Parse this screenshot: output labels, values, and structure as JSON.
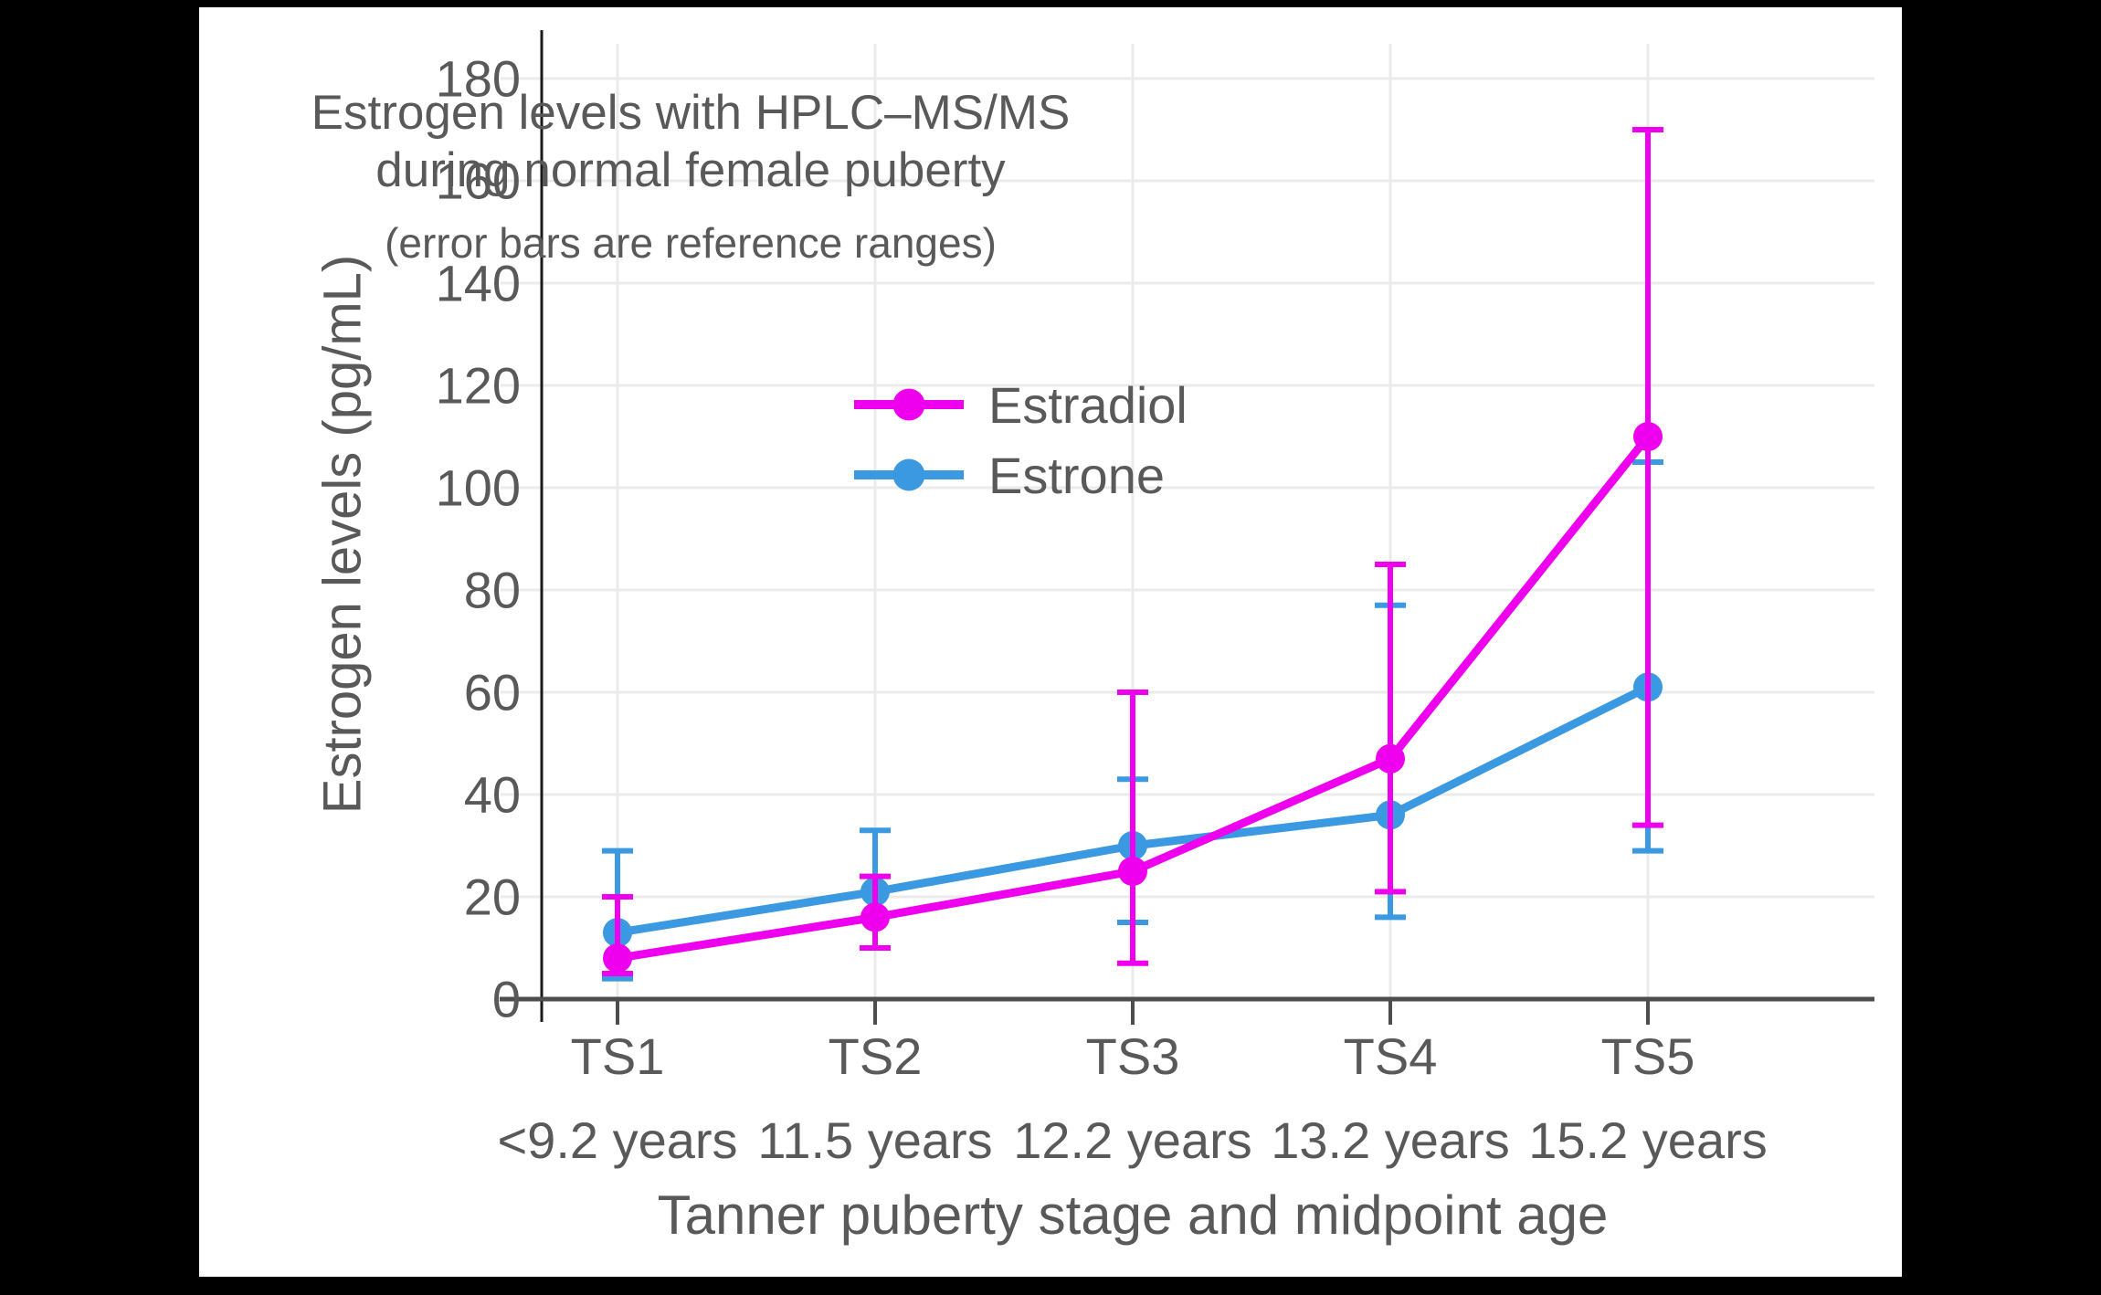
{
  "chart": {
    "title_line1": "Estrogen levels with HPLC–MS/MS",
    "title_line2": "during normal female puberty",
    "subtitle": "(error bars are reference ranges)",
    "y_axis_title": "Estrogen levels (pg/mL)",
    "x_axis_title": "Tanner puberty stage and midpoint age"
  },
  "chart_data": {
    "type": "line",
    "title": "Estrogen levels with HPLC–MS/MS during normal female puberty",
    "subtitle": "(error bars are reference ranges)",
    "xlabel": "Tanner puberty stage and midpoint age",
    "ylabel": "Estrogen levels (pg/mL)",
    "ylim": [
      0,
      180
    ],
    "yticks": [
      0,
      20,
      40,
      60,
      80,
      100,
      120,
      140,
      160,
      180
    ],
    "grid": true,
    "legend_position": "inside upper-left",
    "error_bars_meaning": "reference ranges",
    "categories": [
      "TS1",
      "TS2",
      "TS3",
      "TS4",
      "TS5"
    ],
    "category_sublabels": [
      "<9.2 years",
      "11.5 years",
      "12.2 years",
      "13.2 years",
      "15.2 years"
    ],
    "series": [
      {
        "name": "Estradiol",
        "color": "#EE00EE",
        "values": [
          8,
          16,
          25,
          47,
          110
        ],
        "error_low": [
          5,
          10,
          7,
          21,
          34
        ],
        "error_high": [
          20,
          24,
          60,
          85,
          170
        ]
      },
      {
        "name": "Estrone",
        "color": "#3A99E0",
        "values": [
          13,
          21,
          30,
          36,
          61
        ],
        "error_low": [
          4,
          10,
          15,
          16,
          29
        ],
        "error_high": [
          29,
          33,
          43,
          77,
          105
        ]
      }
    ],
    "colors": {
      "text": "#595959",
      "grid": "#EBEBEB",
      "x_axis": "#4D4D4D",
      "y_axis": "#1A1A1A",
      "background": "#FFFFFF",
      "frame": "#000000"
    }
  }
}
